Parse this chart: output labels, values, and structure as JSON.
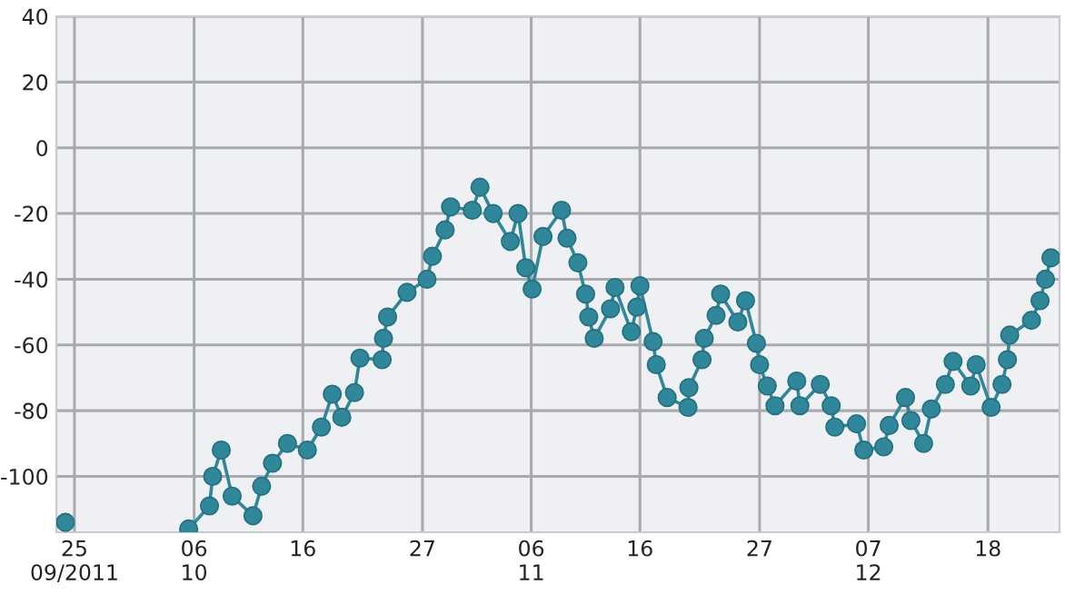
{
  "chart_data": {
    "type": "line",
    "marker": "circle",
    "line_style": "solid",
    "grid": true,
    "legend": false,
    "xlim": [
      "2011-09-23T08:00",
      "2011-12-24T14:00"
    ],
    "ylim": [
      -117,
      40
    ],
    "yticks": [
      -100,
      -80,
      -60,
      -40,
      -20,
      0,
      20,
      40
    ],
    "xticks": [
      {
        "value": "2011-09-25",
        "label": "25\n09/2011"
      },
      {
        "value": "2011-10-06",
        "label": "06\n10"
      },
      {
        "value": "2011-10-16",
        "label": "16"
      },
      {
        "value": "2011-10-27",
        "label": "27"
      },
      {
        "value": "2011-11-06",
        "label": "06\n11"
      },
      {
        "value": "2011-11-16",
        "label": "16"
      },
      {
        "value": "2011-11-27",
        "label": "27"
      },
      {
        "value": "2011-12-07",
        "label": "07\n12"
      },
      {
        "value": "2011-12-18",
        "label": "18"
      }
    ],
    "series": [
      {
        "color": "#2f8799",
        "x": [
          "2011-09-24T04:00",
          "2011-09-28T00:00",
          "2011-10-05T12:00",
          "2011-10-07T10:00",
          "2011-10-07T17:00",
          "2011-10-08T12:00",
          "2011-10-09T12:00",
          "2011-10-11T10:00",
          "2011-10-12T05:00",
          "2011-10-13T05:00",
          "2011-10-14T14:00",
          "2011-10-16T10:00",
          "2011-10-17T17:00",
          "2011-10-18T17:00",
          "2011-10-19T14:00",
          "2011-10-20T18:00",
          "2011-10-21T06:00",
          "2011-10-23T07:00",
          "2011-10-23T10:00",
          "2011-10-23T19:00",
          "2011-10-25T14:00",
          "2011-10-27T10:00",
          "2011-10-27T22:00",
          "2011-10-29T02:00",
          "2011-10-29T14:00",
          "2011-10-31T14:00",
          "2011-11-01T07:00",
          "2011-11-02T12:00",
          "2011-11-04T02:00",
          "2011-11-04T19:00",
          "2011-11-05T12:00",
          "2011-11-06T02:00",
          "2011-11-07T02:00",
          "2011-11-08T19:00",
          "2011-11-09T07:00",
          "2011-11-10T07:00",
          "2011-11-11T00:00",
          "2011-11-11T07:00",
          "2011-11-11T19:00",
          "2011-11-13T07:00",
          "2011-11-13T17:00",
          "2011-11-15T05:00",
          "2011-11-15T17:00",
          "2011-11-16T00:00",
          "2011-11-17T05:00",
          "2011-11-17T12:00",
          "2011-11-18T12:00",
          "2011-11-20T10:00",
          "2011-11-20T12:00",
          "2011-11-21T17:00",
          "2011-11-21T22:00",
          "2011-11-23T00:00",
          "2011-11-23T10:00",
          "2011-11-25T00:00",
          "2011-11-25T17:00",
          "2011-11-26T17:00",
          "2011-11-27T00:00",
          "2011-11-27T17:00",
          "2011-11-28T10:00",
          "2011-11-30T10:00",
          "2011-11-30T17:00",
          "2011-12-02T14:00",
          "2011-12-03T14:00",
          "2011-12-03T22:00",
          "2011-12-05T22:00",
          "2011-12-06T14:00",
          "2011-12-08T10:00",
          "2011-12-08T22:00",
          "2011-12-10T10:00",
          "2011-12-10T22:00",
          "2011-12-12T02:00",
          "2011-12-12T19:00",
          "2011-12-14T02:00",
          "2011-12-14T19:00",
          "2011-12-16T10:00",
          "2011-12-16T22:00",
          "2011-12-18T07:00",
          "2011-12-19T07:00",
          "2011-12-19T19:00",
          "2011-12-20T00:00",
          "2011-12-22T00:00",
          "2011-12-22T19:00",
          "2011-12-23T07:00",
          "2011-12-23T19:00"
        ],
        "values": [
          -114,
          null,
          -116,
          -109,
          -100,
          -92,
          -106,
          -112,
          -103,
          -96,
          -90,
          -92,
          -85,
          -75,
          -82,
          -74.5,
          -64,
          -64.5,
          -58,
          -51.5,
          -44,
          -40,
          -33,
          -25,
          -18,
          -19,
          -12,
          -20,
          -28.5,
          -20,
          -36.5,
          -43,
          -27,
          -19,
          -27.5,
          -35,
          -44.5,
          -51.5,
          -58,
          -49,
          -42.5,
          -56,
          -48.5,
          -42,
          -59,
          -66,
          -76,
          -79,
          -73,
          -64.5,
          -58,
          -51,
          -44.5,
          -53,
          -46.5,
          -59.5,
          -66,
          -72.5,
          -78.5,
          -71,
          -78.5,
          -72,
          -78.5,
          -85,
          -84,
          -92,
          -91,
          -84.5,
          -76,
          -83,
          -90,
          -79.5,
          -72,
          -65,
          -72.5,
          -66,
          -79,
          -72,
          -64.5,
          -57,
          -52.5,
          -46.5,
          -40,
          -33.5
        ]
      }
    ]
  }
}
